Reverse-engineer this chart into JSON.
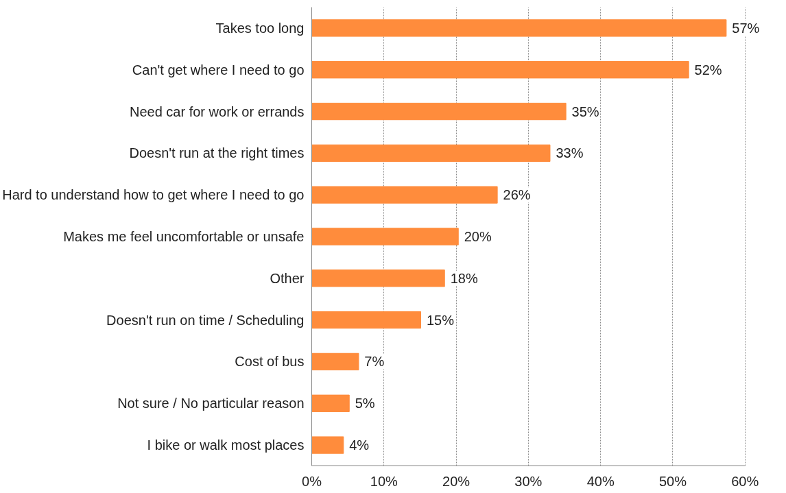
{
  "chart_data": {
    "type": "bar",
    "orientation": "horizontal",
    "categories": [
      "Takes too long",
      "Can't get where I need to go",
      "Need car for work or errands",
      "Doesn't run at the right times",
      "Hard to understand how to get where I need to go",
      "Makes me feel uncomfortable or unsafe",
      "Other",
      "Doesn't run on time / Scheduling",
      "Cost of bus",
      "Not sure / No particular reason",
      "I bike or walk most places"
    ],
    "values": [
      57.4,
      52.2,
      35.2,
      33.0,
      25.7,
      20.3,
      18.4,
      15.1,
      6.5,
      5.2,
      4.4
    ],
    "value_labels": [
      "57%",
      "52%",
      "35%",
      "33%",
      "26%",
      "20%",
      "18%",
      "15%",
      "7%",
      "5%",
      "4%"
    ],
    "color": "#ff8c3c",
    "xlim": [
      0,
      60
    ],
    "xticks": [
      {
        "value": 0,
        "label": "0%"
      },
      {
        "value": 10,
        "label": "10%"
      },
      {
        "value": 20,
        "label": "20%"
      },
      {
        "value": 30,
        "label": "30%"
      },
      {
        "value": 40,
        "label": "40%"
      },
      {
        "value": 50,
        "label": "50%"
      },
      {
        "value": 60,
        "label": "60%"
      }
    ],
    "grid": "x"
  }
}
